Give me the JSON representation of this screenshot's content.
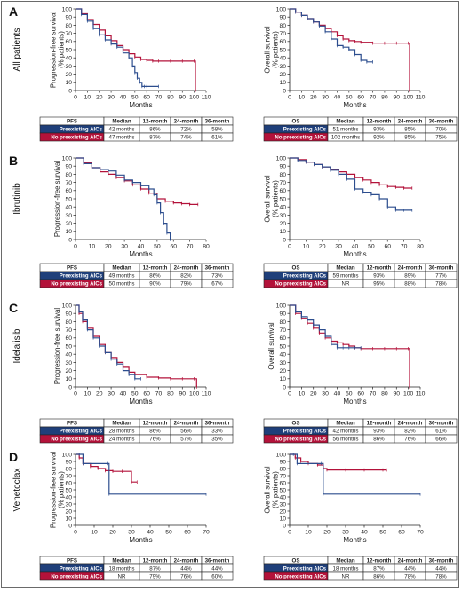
{
  "colors": {
    "preexisting": "#2c4d8e",
    "no_preexisting": "#b3123a",
    "header_bg": "#1f3f7a"
  },
  "chart_data": [
    {
      "type": "line",
      "panel": "A",
      "row_label": "All patients",
      "ylabel": "Progression-free survival (% patients)",
      "xlabel": "Months",
      "xlim": [
        0,
        110
      ],
      "xticks": [
        0,
        10,
        20,
        30,
        40,
        50,
        60,
        70,
        80,
        90,
        100,
        110
      ],
      "ylim": [
        0,
        100
      ],
      "yticks": [
        0,
        10,
        20,
        30,
        40,
        50,
        60,
        70,
        80,
        90,
        100
      ],
      "series": [
        {
          "name": "Preexisting AICs",
          "x": [
            0,
            5,
            10,
            15,
            20,
            25,
            30,
            35,
            40,
            45,
            48,
            50,
            52,
            54,
            56,
            58,
            60,
            70
          ],
          "y": [
            100,
            93,
            85,
            76,
            68,
            62,
            57,
            53,
            46,
            40,
            30,
            22,
            15,
            10,
            5,
            5,
            5,
            5
          ]
        },
        {
          "name": "No preexisting AICs",
          "x": [
            0,
            5,
            10,
            15,
            20,
            25,
            30,
            35,
            40,
            45,
            50,
            55,
            60,
            65,
            70,
            80,
            90,
            100,
            101
          ],
          "y": [
            100,
            94,
            87,
            81,
            74,
            67,
            61,
            55,
            50,
            45,
            41,
            38,
            37,
            36,
            36,
            36,
            36,
            36,
            0
          ]
        }
      ],
      "table": {
        "metric": "PFS",
        "columns": [
          "Median",
          "12-month",
          "24-month",
          "36-month"
        ],
        "rows": [
          {
            "label": "Preexisting AICs",
            "values": [
              "42 months",
              "86%",
              "72%",
              "58%"
            ]
          },
          {
            "label": "No preexisting AICs",
            "values": [
              "47 months",
              "87%",
              "74%",
              "61%"
            ]
          }
        ]
      }
    },
    {
      "type": "line",
      "panel": "A",
      "row_label": "",
      "ylabel": "Overall survival (% patients)",
      "xlabel": "Months",
      "xlim": [
        0,
        110
      ],
      "xticks": [
        0,
        10,
        20,
        30,
        40,
        50,
        60,
        70,
        80,
        90,
        100,
        110
      ],
      "ylim": [
        0,
        100
      ],
      "yticks": [
        0,
        10,
        20,
        30,
        40,
        50,
        60,
        70,
        80,
        90,
        100
      ],
      "series": [
        {
          "name": "Preexisting AICs",
          "x": [
            0,
            5,
            10,
            15,
            20,
            25,
            30,
            35,
            40,
            45,
            50,
            55,
            60,
            65,
            70
          ],
          "y": [
            100,
            96,
            92,
            88,
            84,
            79,
            72,
            63,
            55,
            53,
            50,
            44,
            37,
            35,
            35
          ]
        },
        {
          "name": "No preexisting AICs",
          "x": [
            0,
            5,
            10,
            15,
            20,
            25,
            30,
            35,
            40,
            45,
            50,
            55,
            60,
            70,
            80,
            90,
            100,
            101
          ],
          "y": [
            100,
            96,
            92,
            88,
            84,
            80,
            76,
            72,
            67,
            63,
            61,
            60,
            59,
            58,
            58,
            58,
            58,
            0
          ]
        }
      ],
      "table": {
        "metric": "OS",
        "columns": [
          "Median",
          "12-month",
          "24-month",
          "36-month"
        ],
        "rows": [
          {
            "label": "Preexisting AICs",
            "values": [
              "51 months",
              "93%",
              "85%",
              "70%"
            ]
          },
          {
            "label": "No preexisting AICs",
            "values": [
              "102 months",
              "92%",
              "85%",
              "75%"
            ]
          }
        ]
      }
    },
    {
      "type": "line",
      "panel": "B",
      "row_label": "Ibrutinib",
      "ylabel": "Progression-free survival",
      "xlabel": "Months",
      "xlim": [
        0,
        80
      ],
      "xticks": [
        0,
        10,
        20,
        30,
        40,
        50,
        60,
        70,
        80
      ],
      "ylim": [
        0,
        100
      ],
      "yticks": [
        0,
        10,
        20,
        30,
        40,
        50,
        60,
        70,
        80,
        90,
        100
      ],
      "series": [
        {
          "name": "Preexisting AICs",
          "x": [
            0,
            5,
            10,
            15,
            20,
            25,
            30,
            35,
            40,
            45,
            48,
            50,
            52,
            54,
            56,
            58
          ],
          "y": [
            100,
            93,
            88,
            86,
            84,
            79,
            73,
            70,
            66,
            62,
            55,
            45,
            33,
            20,
            8,
            0
          ]
        },
        {
          "name": "No preexisting AICs",
          "x": [
            0,
            5,
            10,
            15,
            20,
            25,
            30,
            35,
            40,
            45,
            50,
            55,
            60,
            65,
            70,
            75
          ],
          "y": [
            100,
            94,
            88,
            83,
            80,
            76,
            72,
            67,
            62,
            57,
            50,
            47,
            45,
            44,
            43,
            43
          ]
        }
      ],
      "table": {
        "metric": "PFS",
        "columns": [
          "Median",
          "12-month",
          "24-month",
          "36-month"
        ],
        "rows": [
          {
            "label": "Preexisting AICs",
            "values": [
              "49 months",
              "86%",
              "82%",
              "73%"
            ]
          },
          {
            "label": "No preexisting AICs",
            "values": [
              "50 months",
              "90%",
              "79%",
              "67%"
            ]
          }
        ]
      }
    },
    {
      "type": "line",
      "panel": "B",
      "row_label": "",
      "ylabel": "Overall survival (% patients)",
      "xlabel": "Months",
      "xlim": [
        0,
        80
      ],
      "xticks": [
        0,
        10,
        20,
        30,
        40,
        50,
        60,
        70,
        80
      ],
      "ylim": [
        0,
        100
      ],
      "yticks": [
        0,
        10,
        20,
        30,
        40,
        50,
        60,
        70,
        80,
        90,
        100
      ],
      "series": [
        {
          "name": "Preexisting AICs",
          "x": [
            0,
            5,
            10,
            15,
            20,
            25,
            30,
            35,
            40,
            45,
            50,
            55,
            60,
            65,
            70,
            75
          ],
          "y": [
            100,
            97,
            95,
            92,
            89,
            85,
            80,
            74,
            62,
            58,
            55,
            50,
            40,
            36,
            36,
            36
          ]
        },
        {
          "name": "No preexisting AICs",
          "x": [
            0,
            5,
            10,
            15,
            20,
            25,
            30,
            35,
            40,
            45,
            50,
            55,
            60,
            65,
            70,
            75
          ],
          "y": [
            100,
            98,
            95,
            92,
            89,
            86,
            83,
            80,
            76,
            73,
            70,
            67,
            65,
            64,
            63,
            63
          ]
        }
      ],
      "table": {
        "metric": "OS",
        "columns": [
          "Median",
          "12-month",
          "24-month",
          "36-month"
        ],
        "rows": [
          {
            "label": "Preexisting AICs",
            "values": [
              "59 months",
              "93%",
              "89%",
              "77%"
            ]
          },
          {
            "label": "No preexisting AICs",
            "values": [
              "NR",
              "95%",
              "88%",
              "78%"
            ]
          }
        ]
      }
    },
    {
      "type": "line",
      "panel": "C",
      "row_label": "Idelalisib",
      "ylabel": "Progression-free survival",
      "xlabel": "Months",
      "xlim": [
        0,
        110
      ],
      "xticks": [
        0,
        10,
        20,
        30,
        40,
        50,
        60,
        70,
        80,
        90,
        100,
        110
      ],
      "ylim": [
        0,
        100
      ],
      "yticks": [
        0,
        10,
        20,
        30,
        40,
        50,
        60,
        70,
        80,
        90,
        100
      ],
      "series": [
        {
          "name": "Preexisting AICs",
          "x": [
            0,
            3,
            6,
            10,
            15,
            20,
            25,
            30,
            35,
            40,
            45,
            50,
            55
          ],
          "y": [
            100,
            92,
            82,
            70,
            60,
            50,
            42,
            34,
            28,
            20,
            15,
            10,
            10
          ]
        },
        {
          "name": "No preexisting AICs",
          "x": [
            0,
            3,
            6,
            10,
            15,
            20,
            25,
            30,
            35,
            40,
            45,
            50,
            60,
            70,
            80,
            90,
            100,
            102
          ],
          "y": [
            100,
            90,
            80,
            72,
            62,
            52,
            42,
            36,
            30,
            24,
            18,
            15,
            12,
            11,
            10,
            10,
            10,
            0
          ]
        }
      ],
      "table": {
        "metric": "PFS",
        "columns": [
          "Median",
          "12-month",
          "24-month",
          "36-month"
        ],
        "rows": [
          {
            "label": "Preexisting AICs",
            "values": [
              "28 months",
              "86%",
              "56%",
              "33%"
            ]
          },
          {
            "label": "No preexisting AICs",
            "values": [
              "24 months",
              "76%",
              "57%",
              "35%"
            ]
          }
        ]
      }
    },
    {
      "type": "line",
      "panel": "C",
      "row_label": "",
      "ylabel": "Overall survival",
      "xlabel": "Months",
      "xlim": [
        0,
        110
      ],
      "xticks": [
        0,
        10,
        20,
        30,
        40,
        50,
        60,
        70,
        80,
        90,
        100,
        110
      ],
      "ylim": [
        0,
        100
      ],
      "yticks": [
        0,
        10,
        20,
        30,
        40,
        50,
        60,
        70,
        80,
        90,
        100
      ],
      "series": [
        {
          "name": "Preexisting AICs",
          "x": [
            0,
            5,
            10,
            15,
            20,
            25,
            30,
            35,
            40,
            45,
            50,
            55,
            60
          ],
          "y": [
            100,
            92,
            86,
            82,
            76,
            70,
            62,
            52,
            48,
            48,
            48,
            48,
            48
          ]
        },
        {
          "name": "No preexisting AICs",
          "x": [
            0,
            5,
            10,
            15,
            20,
            25,
            30,
            35,
            40,
            45,
            50,
            55,
            60,
            70,
            80,
            90,
            100,
            101
          ],
          "y": [
            100,
            90,
            84,
            78,
            72,
            66,
            60,
            56,
            54,
            52,
            50,
            48,
            47,
            47,
            47,
            47,
            47,
            0
          ]
        }
      ],
      "table": {
        "metric": "OS",
        "columns": [
          "Median",
          "12-month",
          "24-month",
          "36-month"
        ],
        "rows": [
          {
            "label": "Preexisting AICs",
            "values": [
              "42 months",
              "93%",
              "82%",
              "61%"
            ]
          },
          {
            "label": "No preexisting AICs",
            "values": [
              "56 months",
              "86%",
              "76%",
              "66%"
            ]
          }
        ]
      }
    },
    {
      "type": "line",
      "panel": "D",
      "row_label": "Venetoclax",
      "ylabel": "Progression-free survival (% patients)",
      "xlabel": "Months",
      "xlim": [
        0,
        70
      ],
      "xticks": [
        0,
        10,
        20,
        30,
        40,
        50,
        60,
        70
      ],
      "ylim": [
        0,
        100
      ],
      "yticks": [
        0,
        10,
        20,
        30,
        40,
        50,
        60,
        70,
        80,
        90,
        100
      ],
      "series": [
        {
          "name": "Preexisting AICs",
          "x": [
            0,
            2,
            4,
            17,
            18,
            70
          ],
          "y": [
            100,
            100,
            87,
            87,
            44,
            44
          ]
        },
        {
          "name": "No preexisting AICs",
          "x": [
            0,
            2,
            4,
            8,
            12,
            16,
            20,
            25,
            30,
            33
          ],
          "y": [
            100,
            95,
            87,
            83,
            80,
            77,
            76,
            76,
            61,
            61
          ]
        }
      ],
      "table": {
        "metric": "PFS",
        "columns": [
          "Median",
          "12-month",
          "24-month",
          "36-month"
        ],
        "rows": [
          {
            "label": "Preexisting AICs",
            "values": [
              "18 months",
              "87%",
              "44%",
              "44%"
            ]
          },
          {
            "label": "No preexisting AICs",
            "values": [
              "NR",
              "79%",
              "76%",
              "60%"
            ]
          }
        ]
      }
    },
    {
      "type": "line",
      "panel": "D",
      "row_label": "",
      "ylabel": "Overall survival (% patients)",
      "xlabel": "Months",
      "xlim": [
        0,
        70
      ],
      "xticks": [
        0,
        10,
        20,
        30,
        40,
        50,
        60,
        70
      ],
      "ylim": [
        0,
        100
      ],
      "yticks": [
        0,
        10,
        20,
        30,
        40,
        50,
        60,
        70,
        80,
        90,
        100
      ],
      "series": [
        {
          "name": "Preexisting AICs",
          "x": [
            0,
            2,
            4,
            17,
            18,
            70
          ],
          "y": [
            100,
            100,
            87,
            87,
            44,
            44
          ]
        },
        {
          "name": "No preexisting AICs",
          "x": [
            0,
            3,
            6,
            10,
            15,
            18,
            20,
            30,
            40,
            50,
            52
          ],
          "y": [
            100,
            95,
            90,
            87,
            85,
            80,
            78,
            78,
            78,
            78,
            78
          ]
        }
      ],
      "table": {
        "metric": "OS",
        "columns": [
          "Median",
          "12-month",
          "24-month",
          "36-month"
        ],
        "rows": [
          {
            "label": "Preexisting AICs",
            "values": [
              "18 months",
              "87%",
              "44%",
              "44%"
            ]
          },
          {
            "label": "No preexisting AICs",
            "values": [
              "NR",
              "86%",
              "78%",
              "78%"
            ]
          }
        ]
      }
    }
  ]
}
